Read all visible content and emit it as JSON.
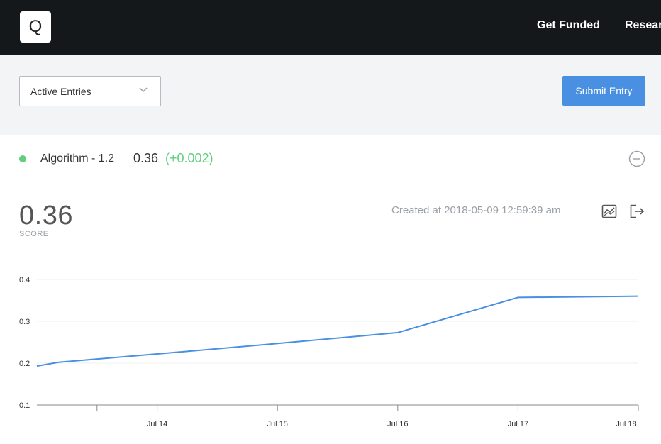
{
  "header": {
    "logo_letter": "Q",
    "nav": [
      {
        "label": "Get Funded"
      },
      {
        "label": "Researc"
      }
    ]
  },
  "toolbar": {
    "filter_value": "Active Entries",
    "submit_label": "Submit Entry"
  },
  "entry": {
    "name": "Algorithm - 1.2",
    "score": "0.36",
    "delta": "(+0.002)",
    "status_color": "#5fcf7e"
  },
  "detail": {
    "score": "0.36",
    "score_label": "SCORE",
    "created": "Created at 2018-05-09 12:59:39 am",
    "icons": [
      "chart-icon",
      "export-icon"
    ]
  },
  "colors": {
    "accent": "#4a90e2",
    "positive": "#5fcf7e",
    "topbar": "#15181b"
  },
  "chart_data": {
    "type": "line",
    "title": "",
    "xlabel": "",
    "ylabel": "",
    "x_ticks": [
      "Jul 14",
      "Jul 15",
      "Jul 16",
      "Jul 17",
      "Jul 18"
    ],
    "y_ticks": [
      "0.4",
      "0.3",
      "0.2",
      "0.1"
    ],
    "ylim": [
      0.1,
      0.4
    ],
    "xlim": [
      13.0,
      18.0
    ],
    "grid": true,
    "series": [
      {
        "color": "#4a90e2",
        "points": [
          {
            "x": 13.0,
            "y": 0.193
          },
          {
            "x": 13.18,
            "y": 0.202
          },
          {
            "x": 14.0,
            "y": 0.222
          },
          {
            "x": 15.0,
            "y": 0.247
          },
          {
            "x": 16.0,
            "y": 0.273
          },
          {
            "x": 17.0,
            "y": 0.357
          },
          {
            "x": 18.0,
            "y": 0.36
          }
        ]
      }
    ]
  }
}
